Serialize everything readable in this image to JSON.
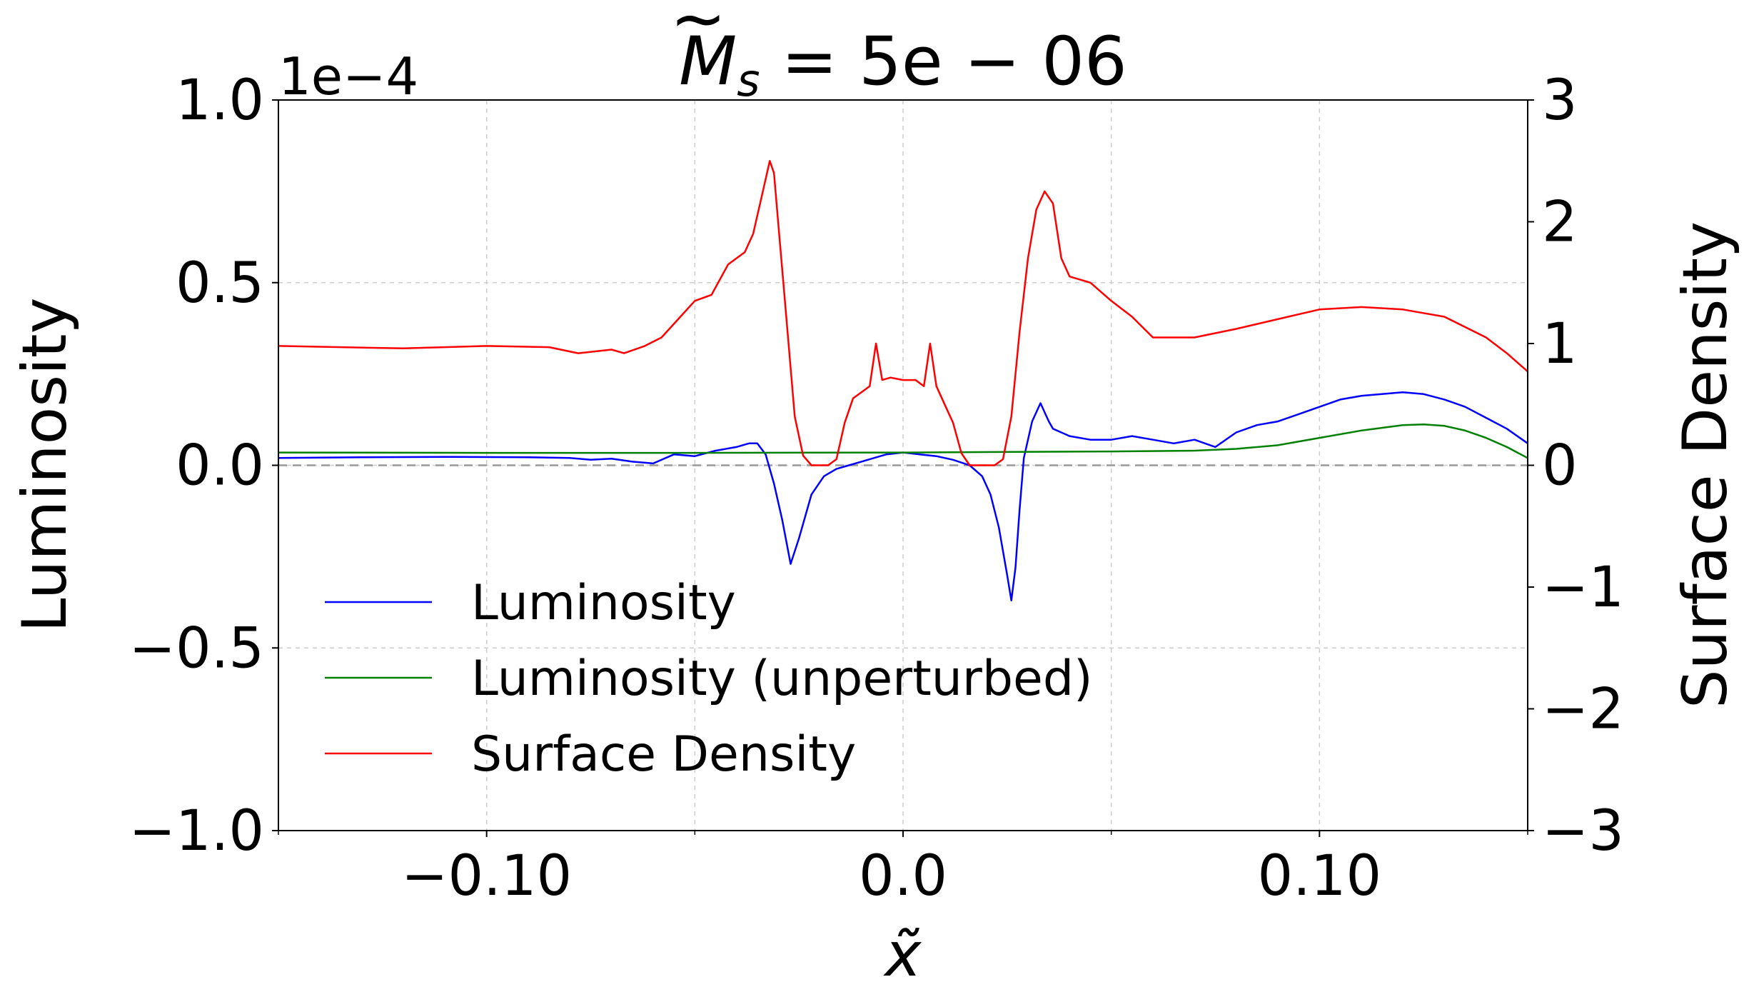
{
  "chart_data": {
    "type": "line",
    "title": "M̃s = 5e − 06",
    "title_parts": {
      "symbol": "M",
      "subscript": "s",
      "rest": " = 5e − 06"
    },
    "xlabel": "x̃",
    "ylabel_left": "Luminosity",
    "ylabel_right": "Surface Density",
    "left_axis_multiplier": "1e−4",
    "xlim": [
      -0.15,
      0.15
    ],
    "ylim_left": [
      -1.0,
      1.0
    ],
    "ylim_right": [
      -3,
      3
    ],
    "x_ticks": [
      {
        "value": -0.1,
        "label": "−0.10"
      },
      {
        "value": 0.0,
        "label": "0.0"
      },
      {
        "value": 0.1,
        "label": "0.10"
      }
    ],
    "x_minor_ticks": [
      -0.15,
      -0.05,
      0.05,
      0.15
    ],
    "y_left_ticks": [
      {
        "value": 1.0,
        "label": "1.0"
      },
      {
        "value": 0.5,
        "label": "0.5"
      },
      {
        "value": 0.0,
        "label": "0.0"
      },
      {
        "value": -0.5,
        "label": "−0.5"
      },
      {
        "value": -1.0,
        "label": "−1.0"
      }
    ],
    "y_right_ticks": [
      {
        "value": 3,
        "label": "3"
      },
      {
        "value": 2,
        "label": "2"
      },
      {
        "value": 1,
        "label": "1"
      },
      {
        "value": 0,
        "label": "0"
      },
      {
        "value": -1,
        "label": "−1"
      },
      {
        "value": -2,
        "label": "−2"
      },
      {
        "value": -3,
        "label": "−3"
      }
    ],
    "grid": true,
    "zero_line": true,
    "legend_position": "lower-left",
    "series": [
      {
        "name": "Luminosity",
        "axis": "left",
        "color": "#0000ff",
        "x": [
          -0.15,
          -0.13,
          -0.11,
          -0.09,
          -0.08,
          -0.075,
          -0.07,
          -0.065,
          -0.06,
          -0.055,
          -0.05,
          -0.045,
          -0.04,
          -0.037,
          -0.035,
          -0.033,
          -0.031,
          -0.029,
          -0.027,
          -0.025,
          -0.022,
          -0.019,
          -0.016,
          -0.013,
          -0.01,
          -0.007,
          -0.004,
          0.0,
          0.004,
          0.008,
          0.012,
          0.016,
          0.019,
          0.021,
          0.023,
          0.025,
          0.026,
          0.027,
          0.028,
          0.029,
          0.031,
          0.033,
          0.035,
          0.036,
          0.038,
          0.04,
          0.045,
          0.05,
          0.055,
          0.06,
          0.065,
          0.07,
          0.075,
          0.08,
          0.085,
          0.09,
          0.095,
          0.1,
          0.105,
          0.11,
          0.115,
          0.12,
          0.125,
          0.13,
          0.135,
          0.14,
          0.145,
          0.15
        ],
        "values": [
          0.02,
          0.022,
          0.023,
          0.022,
          0.02,
          0.015,
          0.018,
          0.01,
          0.005,
          0.03,
          0.025,
          0.04,
          0.05,
          0.06,
          0.06,
          0.03,
          -0.05,
          -0.15,
          -0.27,
          -0.2,
          -0.08,
          -0.03,
          -0.01,
          0.0,
          0.01,
          0.02,
          0.03,
          0.035,
          0.03,
          0.025,
          0.015,
          0.0,
          -0.03,
          -0.08,
          -0.17,
          -0.3,
          -0.37,
          -0.28,
          -0.12,
          0.02,
          0.12,
          0.17,
          0.12,
          0.1,
          0.09,
          0.08,
          0.07,
          0.07,
          0.08,
          0.07,
          0.06,
          0.07,
          0.05,
          0.09,
          0.11,
          0.12,
          0.14,
          0.16,
          0.18,
          0.19,
          0.195,
          0.2,
          0.195,
          0.18,
          0.16,
          0.13,
          0.1,
          0.06
        ]
      },
      {
        "name": "Luminosity (unperturbed)",
        "axis": "left",
        "color": "#008000",
        "x": [
          -0.15,
          -0.1,
          -0.05,
          0.0,
          0.05,
          0.07,
          0.08,
          0.09,
          0.1,
          0.11,
          0.12,
          0.125,
          0.13,
          0.135,
          0.14,
          0.145,
          0.15
        ],
        "values": [
          0.035,
          0.034,
          0.034,
          0.035,
          0.038,
          0.04,
          0.045,
          0.055,
          0.075,
          0.095,
          0.11,
          0.112,
          0.108,
          0.095,
          0.075,
          0.05,
          0.02
        ]
      },
      {
        "name": "Surface Density",
        "axis": "right",
        "color": "#ff0000",
        "x": [
          -0.15,
          -0.12,
          -0.1,
          -0.085,
          -0.078,
          -0.07,
          -0.067,
          -0.062,
          -0.058,
          -0.054,
          -0.05,
          -0.046,
          -0.042,
          -0.038,
          -0.036,
          -0.034,
          -0.032,
          -0.031,
          -0.03,
          -0.028,
          -0.026,
          -0.024,
          -0.022,
          -0.02,
          -0.018,
          -0.016,
          -0.014,
          -0.012,
          -0.01,
          -0.008,
          -0.0065,
          -0.005,
          -0.003,
          0.0,
          0.003,
          0.005,
          0.0065,
          0.008,
          0.01,
          0.012,
          0.014,
          0.016,
          0.018,
          0.02,
          0.022,
          0.024,
          0.026,
          0.028,
          0.03,
          0.032,
          0.034,
          0.036,
          0.038,
          0.04,
          0.045,
          0.05,
          0.055,
          0.06,
          0.07,
          0.08,
          0.09,
          0.1,
          0.11,
          0.12,
          0.13,
          0.14,
          0.145,
          0.15
        ],
        "values": [
          0.98,
          0.96,
          0.98,
          0.97,
          0.92,
          0.95,
          0.92,
          0.98,
          1.05,
          1.2,
          1.35,
          1.4,
          1.65,
          1.75,
          1.9,
          2.2,
          2.5,
          2.4,
          2.0,
          1.2,
          0.4,
          0.08,
          0.0,
          0.0,
          0.0,
          0.05,
          0.35,
          0.55,
          0.6,
          0.65,
          1.0,
          0.7,
          0.72,
          0.7,
          0.7,
          0.65,
          1.0,
          0.65,
          0.5,
          0.35,
          0.1,
          0.0,
          0.0,
          0.0,
          0.0,
          0.05,
          0.4,
          1.1,
          1.7,
          2.1,
          2.25,
          2.15,
          1.7,
          1.55,
          1.5,
          1.35,
          1.22,
          1.05,
          1.05,
          1.12,
          1.2,
          1.28,
          1.3,
          1.28,
          1.22,
          1.05,
          0.92,
          0.77
        ]
      }
    ]
  }
}
